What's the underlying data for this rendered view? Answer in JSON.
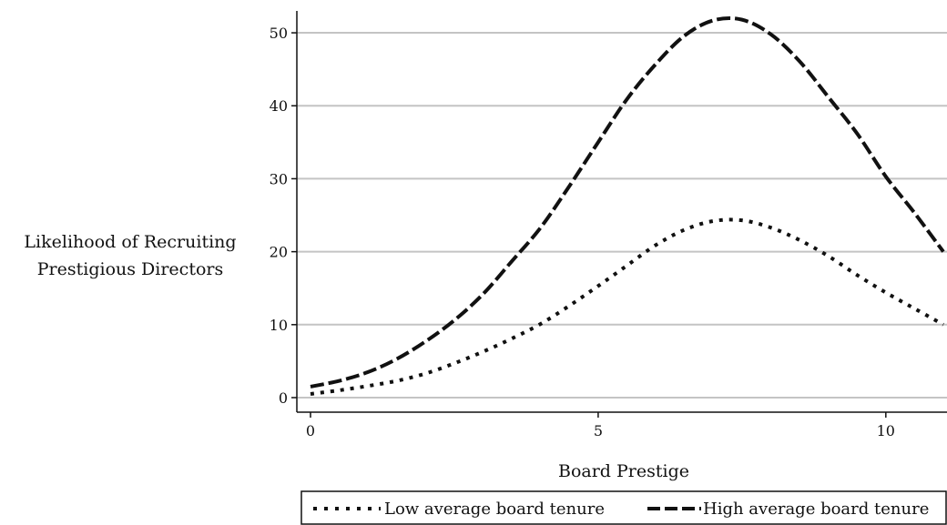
{
  "chart_data": {
    "type": "line",
    "title": "",
    "xlabel": "Board Prestige",
    "ylabel_lines": [
      "Likelihood of Recruiting",
      "Prestigious Directors"
    ],
    "xlim": [
      0,
      11
    ],
    "ylim": [
      0,
      53
    ],
    "xticks": [
      0,
      5,
      10
    ],
    "yticks": [
      0,
      10,
      20,
      30,
      40,
      50
    ],
    "grid": "horizontal",
    "legend_position": "bottom",
    "series": [
      {
        "name": "Low average board tenure",
        "style": "dotted",
        "x": [
          0,
          0.5,
          1.0,
          1.5,
          2.0,
          2.5,
          3.0,
          3.5,
          4.0,
          4.5,
          5.0,
          5.5,
          6.0,
          6.5,
          7.0,
          7.5,
          8.0,
          8.5,
          9.0,
          9.5,
          10.0,
          10.5,
          11.0
        ],
        "y": [
          0.5,
          1.0,
          1.6,
          2.3,
          3.3,
          4.7,
          6.3,
          8.1,
          10.1,
          12.6,
          15.3,
          18.1,
          20.9,
          23.0,
          24.2,
          24.3,
          23.3,
          21.6,
          19.4,
          16.8,
          14.4,
          12.2,
          10.0
        ]
      },
      {
        "name": "High average board tenure",
        "style": "dashed",
        "x": [
          0,
          0.5,
          1.0,
          1.5,
          2.0,
          2.5,
          3.0,
          3.5,
          4.0,
          4.5,
          5.0,
          5.5,
          6.0,
          6.5,
          7.0,
          7.5,
          8.0,
          8.5,
          9.0,
          9.5,
          10.0,
          10.5,
          11.0
        ],
        "y": [
          1.5,
          2.3,
          3.5,
          5.3,
          7.7,
          10.6,
          14.2,
          18.7,
          23.3,
          29.0,
          35.0,
          40.9,
          45.7,
          49.6,
          51.7,
          51.8,
          49.8,
          46.1,
          41.2,
          36.2,
          30.3,
          25.3,
          20.0
        ]
      }
    ]
  }
}
